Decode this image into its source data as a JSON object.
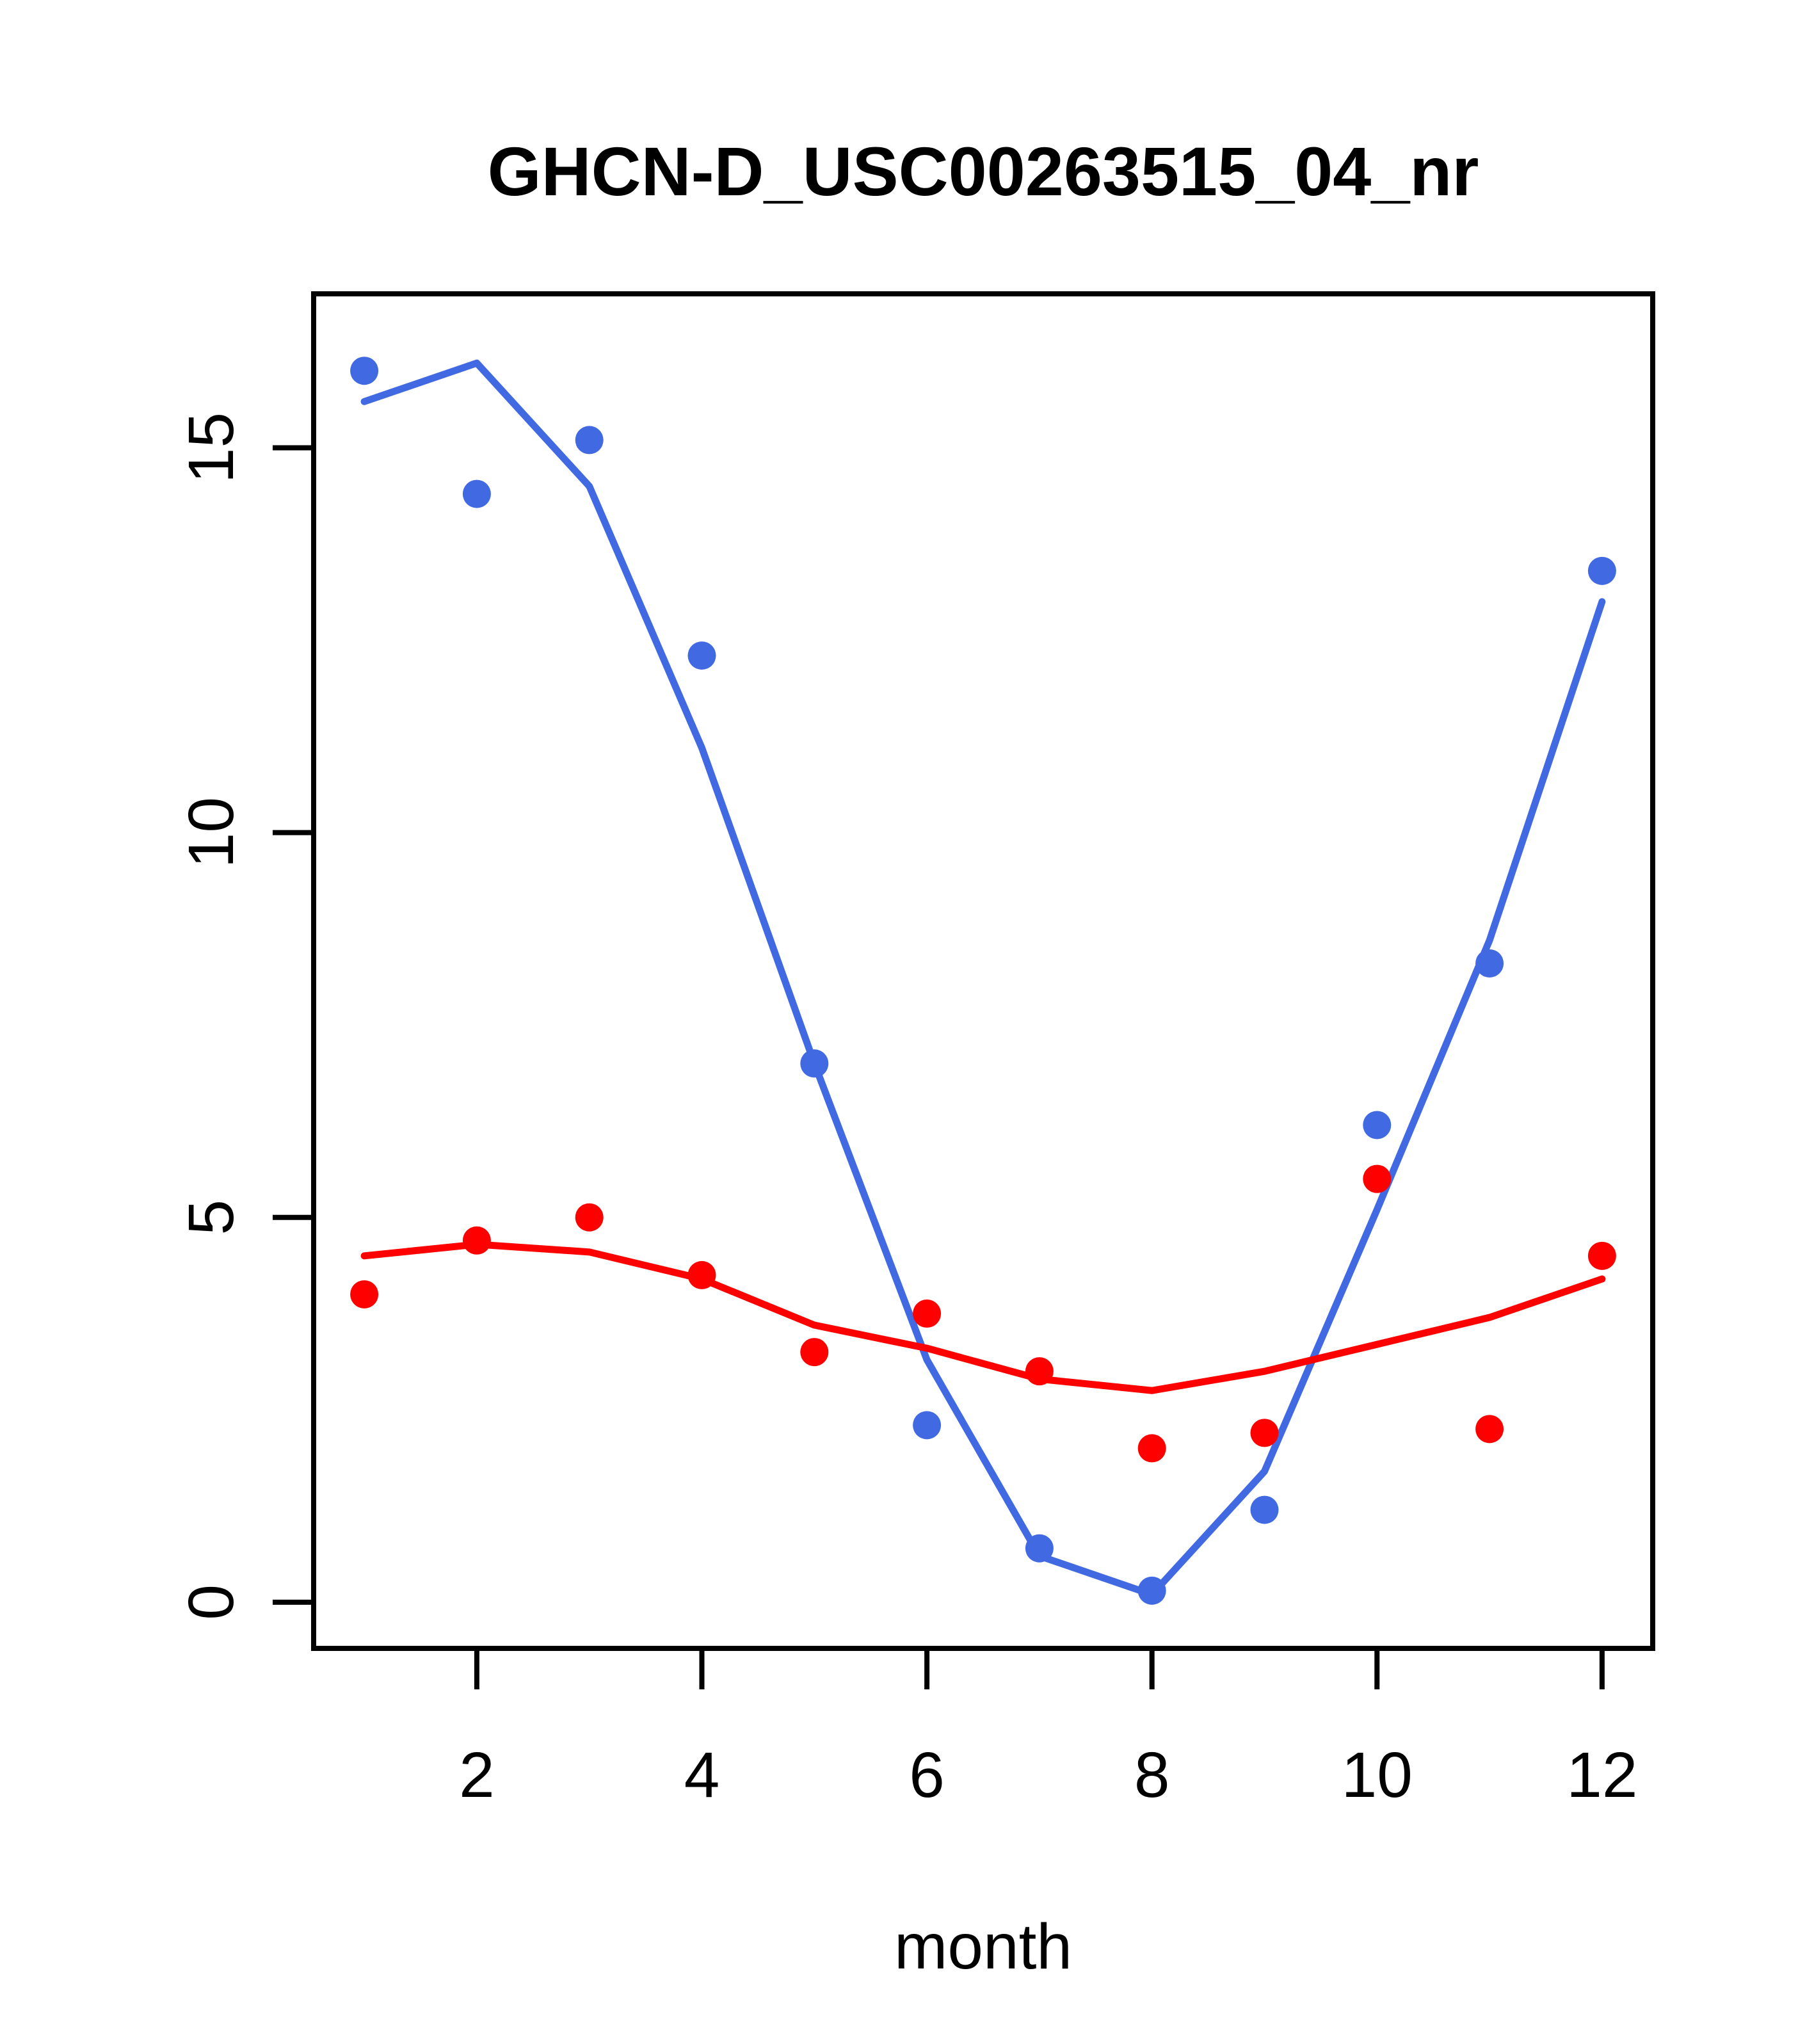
{
  "title": "GHCN-D_USC00263515_04_nr",
  "chart_data": {
    "type": "scatter",
    "title": "GHCN-D_USC00263515_04_nr",
    "xlabel": "month",
    "ylabel": "",
    "x": [
      1,
      2,
      3,
      4,
      5,
      6,
      7,
      8,
      9,
      10,
      11,
      12
    ],
    "series": [
      {
        "name": "blue monthly points",
        "kind": "points",
        "color": "#4169E1",
        "values": [
          16.0,
          14.4,
          15.1,
          12.3,
          7.0,
          2.3,
          0.7,
          0.15,
          1.2,
          6.2,
          8.3,
          13.4
        ]
      },
      {
        "name": "blue lowess fit",
        "kind": "line",
        "color": "#4169E1",
        "values": [
          15.6,
          16.1,
          14.5,
          11.1,
          7.0,
          3.15,
          0.6,
          0.1,
          1.7,
          5.1,
          8.6,
          13.0
        ]
      },
      {
        "name": "red monthly points",
        "kind": "points",
        "color": "#FF0000",
        "values": [
          4.0,
          4.7,
          5.0,
          4.25,
          3.25,
          3.75,
          3.0,
          2.0,
          2.2,
          5.5,
          2.25,
          4.5
        ]
      },
      {
        "name": "red lowess fit",
        "kind": "line",
        "color": "#FF0000",
        "values": [
          4.5,
          4.65,
          4.55,
          4.2,
          3.6,
          3.3,
          2.9,
          2.75,
          3.0,
          3.35,
          3.7,
          4.2
        ]
      }
    ],
    "x_ticks": [
      2,
      4,
      6,
      8,
      10,
      12
    ],
    "y_ticks": [
      0,
      5,
      10,
      15
    ],
    "xlim": [
      0.55,
      12.45
    ],
    "ylim": [
      -0.6,
      17.0
    ],
    "grid": false,
    "legend": "none"
  },
  "colors": {
    "blue_series": "#4169E1",
    "red_series": "#FF0000",
    "axis": "#000000",
    "background": "#FFFFFF"
  }
}
